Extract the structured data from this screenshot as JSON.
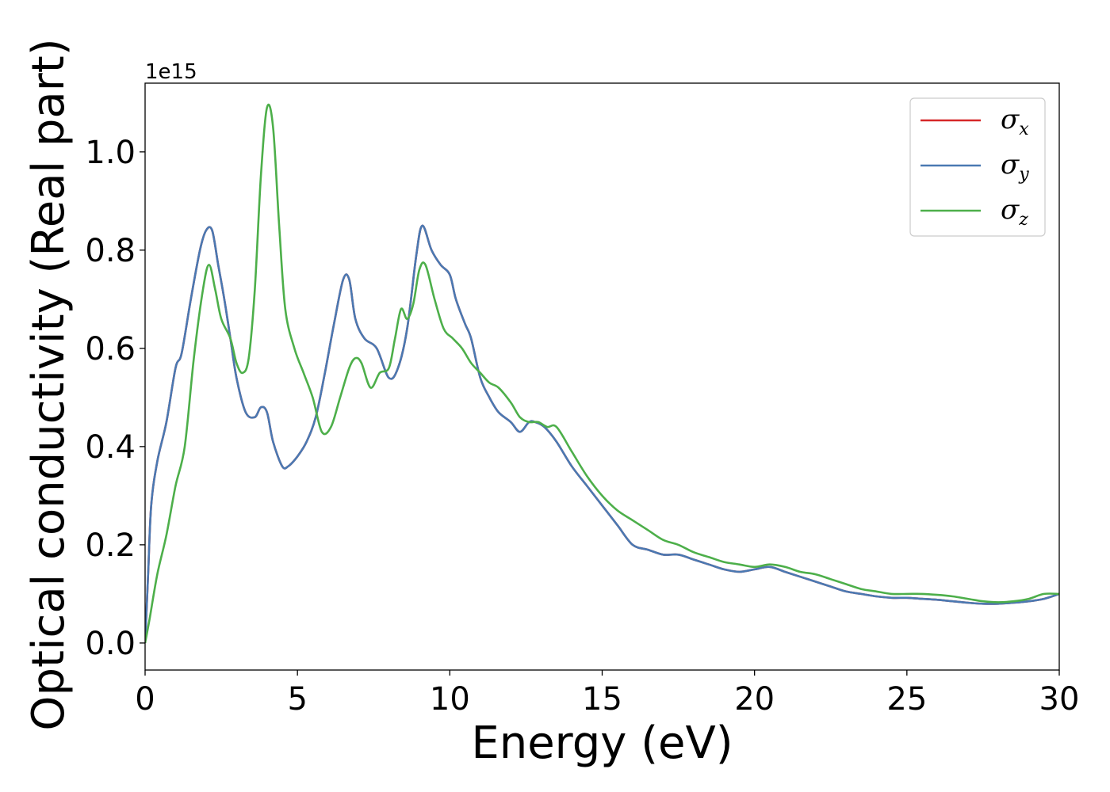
{
  "chart_data": {
    "type": "line",
    "title": "",
    "xlabel": "Energy (eV)",
    "ylabel": "Optical conductivity (Real part)",
    "y_offset_text": "1e15",
    "xlim": [
      0,
      30
    ],
    "ylim": [
      -0.055,
      1.14
    ],
    "x_ticks": [
      0,
      5,
      10,
      15,
      20,
      25,
      30
    ],
    "x_tick_labels": [
      "0",
      "5",
      "10",
      "15",
      "20",
      "25",
      "30"
    ],
    "y_ticks": [
      0.0,
      0.2,
      0.4,
      0.6,
      0.8,
      1.0
    ],
    "y_tick_labels": [
      "0.0",
      "0.2",
      "0.4",
      "0.6",
      "0.8",
      "1.0"
    ],
    "grid": false,
    "legend_position": "top-right",
    "series": [
      {
        "name": "σx",
        "symbol": "σ",
        "subscript": "x",
        "color": "#d62728",
        "x": [
          0,
          0.1,
          0.2,
          0.4,
          0.7,
          1.0,
          1.2,
          1.5,
          1.8,
          2.0,
          2.2,
          2.4,
          2.6,
          2.8,
          3.0,
          3.3,
          3.6,
          3.8,
          4.0,
          4.2,
          4.5,
          4.7,
          5.0,
          5.3,
          5.6,
          5.9,
          6.2,
          6.5,
          6.7,
          6.9,
          7.2,
          7.6,
          8.0,
          8.3,
          8.6,
          8.9,
          9.1,
          9.4,
          9.7,
          10.0,
          10.2,
          10.5,
          10.7,
          11.0,
          11.3,
          11.6,
          12.0,
          12.3,
          12.6,
          12.8,
          13.1,
          13.5,
          14.0,
          14.5,
          15.0,
          15.5,
          16.0,
          16.5,
          17.0,
          17.5,
          18.0,
          18.5,
          19.0,
          19.5,
          20.0,
          20.5,
          21.0,
          21.5,
          22.0,
          22.5,
          23.0,
          23.5,
          24.0,
          24.5,
          25.0,
          25.5,
          26.0,
          26.5,
          27.0,
          27.5,
          28.0,
          28.5,
          29.0,
          29.5,
          30.0
        ],
        "values": [
          0.0,
          0.14,
          0.28,
          0.37,
          0.45,
          0.56,
          0.59,
          0.7,
          0.8,
          0.84,
          0.84,
          0.77,
          0.7,
          0.62,
          0.54,
          0.47,
          0.46,
          0.48,
          0.47,
          0.41,
          0.36,
          0.36,
          0.38,
          0.41,
          0.46,
          0.55,
          0.65,
          0.74,
          0.74,
          0.66,
          0.62,
          0.6,
          0.54,
          0.56,
          0.64,
          0.79,
          0.85,
          0.8,
          0.77,
          0.75,
          0.7,
          0.65,
          0.62,
          0.54,
          0.5,
          0.47,
          0.45,
          0.43,
          0.45,
          0.45,
          0.44,
          0.41,
          0.36,
          0.32,
          0.28,
          0.24,
          0.2,
          0.19,
          0.18,
          0.18,
          0.17,
          0.16,
          0.15,
          0.145,
          0.15,
          0.155,
          0.145,
          0.135,
          0.125,
          0.115,
          0.105,
          0.1,
          0.095,
          0.092,
          0.092,
          0.09,
          0.088,
          0.085,
          0.082,
          0.08,
          0.08,
          0.082,
          0.085,
          0.09,
          0.1
        ]
      },
      {
        "name": "σy",
        "symbol": "σ",
        "subscript": "y",
        "color": "#4a79b2",
        "x": [
          0,
          0.1,
          0.2,
          0.4,
          0.7,
          1.0,
          1.2,
          1.5,
          1.8,
          2.0,
          2.2,
          2.4,
          2.6,
          2.8,
          3.0,
          3.3,
          3.6,
          3.8,
          4.0,
          4.2,
          4.5,
          4.7,
          5.0,
          5.3,
          5.6,
          5.9,
          6.2,
          6.5,
          6.7,
          6.9,
          7.2,
          7.6,
          8.0,
          8.3,
          8.6,
          8.9,
          9.1,
          9.4,
          9.7,
          10.0,
          10.2,
          10.5,
          10.7,
          11.0,
          11.3,
          11.6,
          12.0,
          12.3,
          12.6,
          12.8,
          13.1,
          13.5,
          14.0,
          14.5,
          15.0,
          15.5,
          16.0,
          16.5,
          17.0,
          17.5,
          18.0,
          18.5,
          19.0,
          19.5,
          20.0,
          20.5,
          21.0,
          21.5,
          22.0,
          22.5,
          23.0,
          23.5,
          24.0,
          24.5,
          25.0,
          25.5,
          26.0,
          26.5,
          27.0,
          27.5,
          28.0,
          28.5,
          29.0,
          29.5,
          30.0
        ],
        "values": [
          0.0,
          0.14,
          0.28,
          0.37,
          0.45,
          0.56,
          0.59,
          0.7,
          0.8,
          0.84,
          0.84,
          0.77,
          0.7,
          0.62,
          0.54,
          0.47,
          0.46,
          0.48,
          0.47,
          0.41,
          0.36,
          0.36,
          0.38,
          0.41,
          0.46,
          0.55,
          0.65,
          0.74,
          0.74,
          0.66,
          0.62,
          0.6,
          0.54,
          0.56,
          0.64,
          0.79,
          0.85,
          0.8,
          0.77,
          0.75,
          0.7,
          0.65,
          0.62,
          0.54,
          0.5,
          0.47,
          0.45,
          0.43,
          0.45,
          0.45,
          0.44,
          0.41,
          0.36,
          0.32,
          0.28,
          0.24,
          0.2,
          0.19,
          0.18,
          0.18,
          0.17,
          0.16,
          0.15,
          0.145,
          0.15,
          0.155,
          0.145,
          0.135,
          0.125,
          0.115,
          0.105,
          0.1,
          0.095,
          0.092,
          0.092,
          0.09,
          0.088,
          0.085,
          0.082,
          0.08,
          0.08,
          0.082,
          0.085,
          0.09,
          0.1
        ]
      },
      {
        "name": "σz",
        "symbol": "σ",
        "subscript": "z",
        "color": "#4daf4a",
        "x": [
          0,
          0.15,
          0.4,
          0.7,
          1.0,
          1.3,
          1.6,
          1.9,
          2.1,
          2.3,
          2.5,
          2.8,
          3.0,
          3.2,
          3.4,
          3.6,
          3.8,
          4.0,
          4.2,
          4.4,
          4.6,
          4.9,
          5.2,
          5.5,
          5.8,
          6.1,
          6.4,
          6.7,
          6.9,
          7.1,
          7.4,
          7.7,
          8.0,
          8.2,
          8.4,
          8.6,
          8.8,
          9.0,
          9.2,
          9.5,
          9.8,
          10.1,
          10.4,
          10.7,
          11.0,
          11.3,
          11.6,
          12.0,
          12.3,
          12.6,
          12.9,
          13.2,
          13.5,
          14.0,
          14.5,
          15.0,
          15.5,
          16.0,
          16.5,
          17.0,
          17.5,
          18.0,
          18.5,
          19.0,
          19.5,
          20.0,
          20.5,
          21.0,
          21.5,
          22.0,
          22.5,
          23.0,
          23.5,
          24.0,
          24.5,
          25.0,
          25.5,
          26.0,
          26.5,
          27.0,
          27.5,
          28.0,
          28.5,
          29.0,
          29.5,
          30.0
        ],
        "values": [
          0.0,
          0.05,
          0.14,
          0.22,
          0.32,
          0.4,
          0.58,
          0.72,
          0.77,
          0.72,
          0.66,
          0.62,
          0.57,
          0.55,
          0.58,
          0.72,
          0.95,
          1.09,
          1.05,
          0.85,
          0.68,
          0.6,
          0.55,
          0.5,
          0.43,
          0.44,
          0.5,
          0.56,
          0.58,
          0.57,
          0.52,
          0.55,
          0.56,
          0.62,
          0.68,
          0.66,
          0.69,
          0.76,
          0.77,
          0.7,
          0.64,
          0.62,
          0.6,
          0.57,
          0.55,
          0.53,
          0.52,
          0.49,
          0.46,
          0.45,
          0.45,
          0.44,
          0.44,
          0.39,
          0.34,
          0.3,
          0.27,
          0.25,
          0.23,
          0.21,
          0.2,
          0.185,
          0.175,
          0.165,
          0.16,
          0.155,
          0.16,
          0.155,
          0.145,
          0.14,
          0.13,
          0.12,
          0.11,
          0.105,
          0.1,
          0.1,
          0.1,
          0.098,
          0.095,
          0.09,
          0.085,
          0.083,
          0.085,
          0.09,
          0.1,
          0.1
        ]
      }
    ]
  }
}
